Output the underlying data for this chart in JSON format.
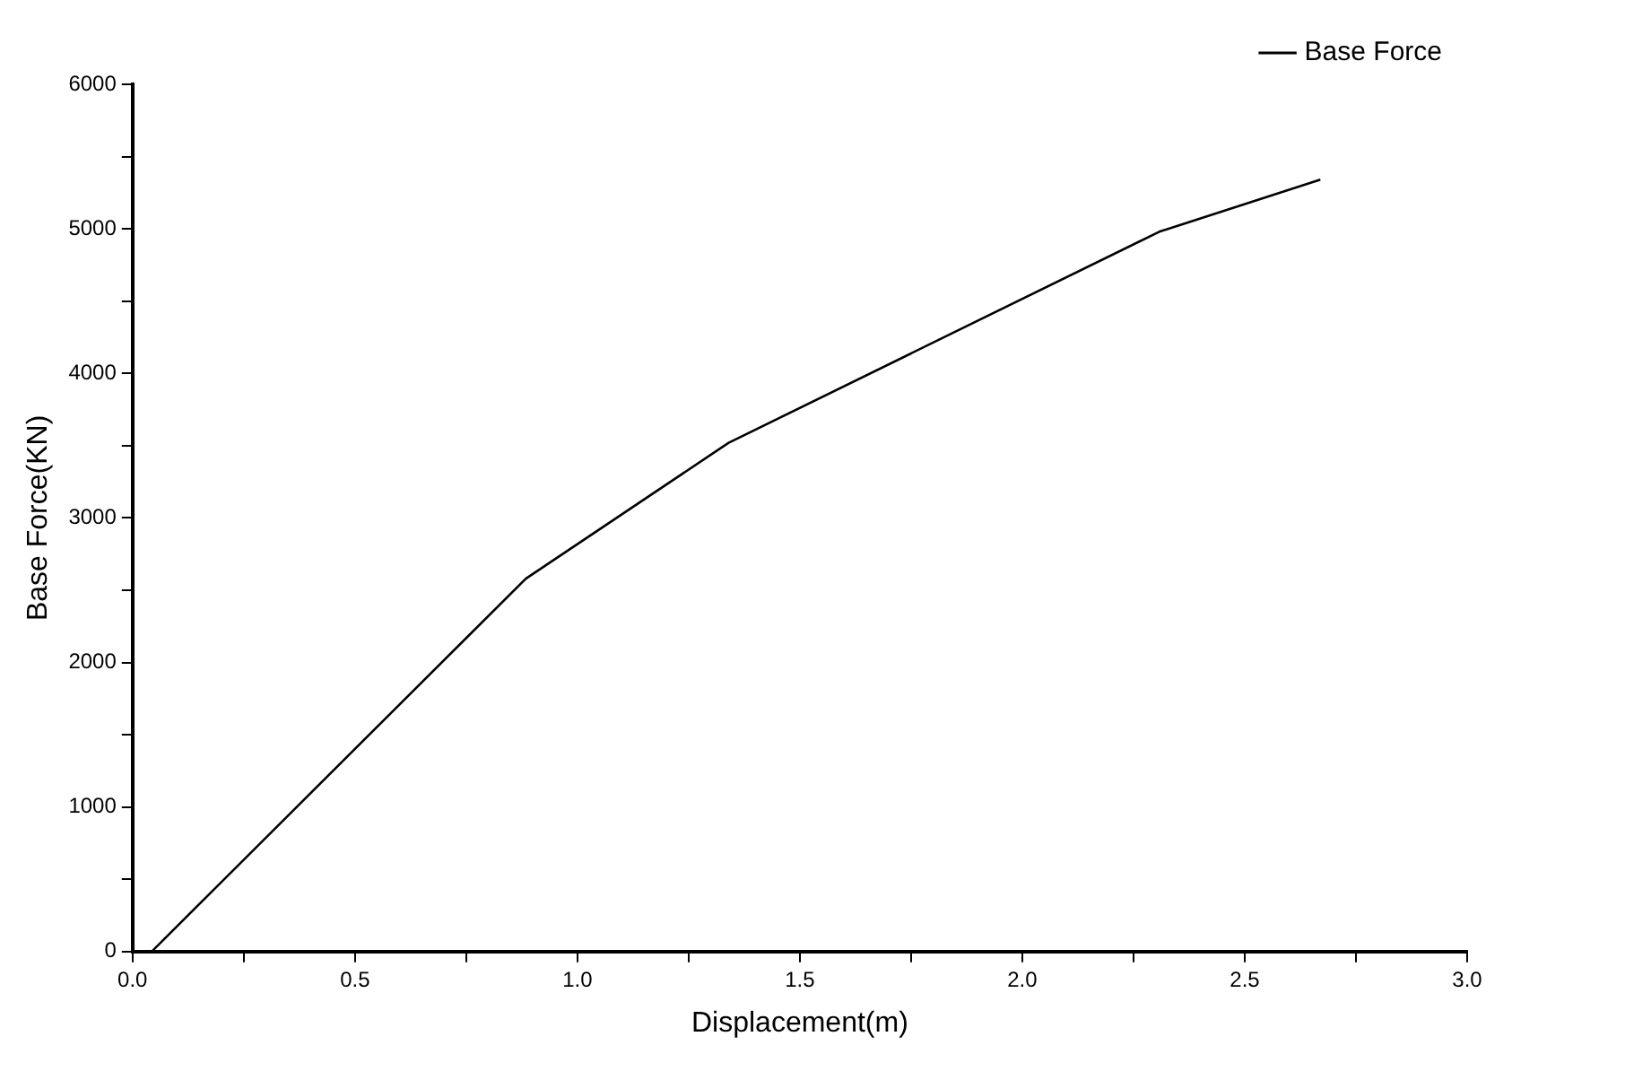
{
  "chart_data": {
    "type": "line",
    "xlabel": "Displacement(m)",
    "ylabel": "Base Force(KN)",
    "x": [
      0.043,
      0.884,
      1.34,
      2.308,
      2.67
    ],
    "series": [
      {
        "name": "Base Force",
        "color": "#000000",
        "values": [
          0,
          2580,
          3520,
          4980,
          5340
        ]
      }
    ],
    "xlim": [
      0,
      3
    ],
    "ylim": [
      0,
      6000
    ],
    "xticks": [
      {
        "value": 0,
        "label": "0.0"
      },
      {
        "value": 0.25,
        "label": null
      },
      {
        "value": 0.5,
        "label": "0.5"
      },
      {
        "value": 0.75,
        "label": null
      },
      {
        "value": 1,
        "label": "1.0"
      },
      {
        "value": 1.25,
        "label": null
      },
      {
        "value": 1.5,
        "label": "1.5"
      },
      {
        "value": 1.75,
        "label": null
      },
      {
        "value": 2,
        "label": "2.0"
      },
      {
        "value": 2.25,
        "label": null
      },
      {
        "value": 2.5,
        "label": "2.5"
      },
      {
        "value": 2.75,
        "label": null
      },
      {
        "value": 3,
        "label": "3.0"
      }
    ],
    "yticks": [
      0,
      {
        "value": 500,
        "label": null
      },
      1000,
      {
        "value": 1500,
        "label": null
      },
      2000,
      {
        "value": 2500,
        "label": null
      },
      3000,
      {
        "value": 3500,
        "label": null
      },
      4000,
      {
        "value": 4500,
        "label": null
      },
      5000,
      {
        "value": 5500,
        "label": null
      },
      6000
    ],
    "legend": "top right",
    "grid": false,
    "marker": "none",
    "line_style": "solid"
  }
}
